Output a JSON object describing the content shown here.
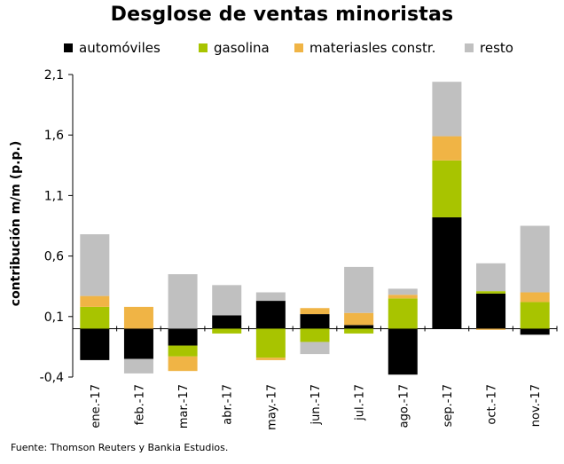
{
  "chart_data": {
    "type": "bar",
    "stacked": true,
    "title": "Desglose de ventas minoristas",
    "xlabel": "",
    "ylabel": "contribución m/m (p.p.)",
    "ylim": [
      -0.4,
      2.1
    ],
    "yticks": [
      "2,1",
      "1,6",
      "1,1",
      "0,6",
      "0,1",
      "-0,4"
    ],
    "ytick_values": [
      2.1,
      1.6,
      1.1,
      0.6,
      0.1,
      -0.4
    ],
    "categories": [
      "ene.-17",
      "feb.-17",
      "mar.-17",
      "abr.-17",
      "may.-17",
      "jun.-17",
      "jul.-17",
      "ago.-17",
      "sep.-17",
      "oct.-17",
      "nov.-17"
    ],
    "series": [
      {
        "name": "automóviles",
        "color": "#000000",
        "values": [
          -0.26,
          -0.25,
          -0.14,
          0.11,
          0.23,
          0.12,
          0.03,
          -0.38,
          0.92,
          0.29,
          -0.05
        ]
      },
      {
        "name": "gasolina",
        "color": "#a8c400",
        "values": [
          0.18,
          0.0,
          -0.09,
          -0.04,
          -0.24,
          -0.11,
          -0.04,
          0.25,
          0.47,
          0.02,
          0.22
        ]
      },
      {
        "name": "materiasles constr.",
        "color": "#f0b445",
        "values": [
          0.09,
          0.18,
          -0.12,
          0.0,
          -0.02,
          0.05,
          0.1,
          0.03,
          0.2,
          -0.01,
          0.08
        ]
      },
      {
        "name": "resto",
        "color": "#c0c0c0",
        "values": [
          0.51,
          -0.12,
          0.45,
          0.25,
          0.07,
          -0.1,
          0.38,
          0.05,
          0.45,
          0.23,
          0.55
        ]
      }
    ],
    "legend_position": "top",
    "grid": false
  },
  "source_text": "Fuente: Thomson Reuters y Bankia Estudios."
}
